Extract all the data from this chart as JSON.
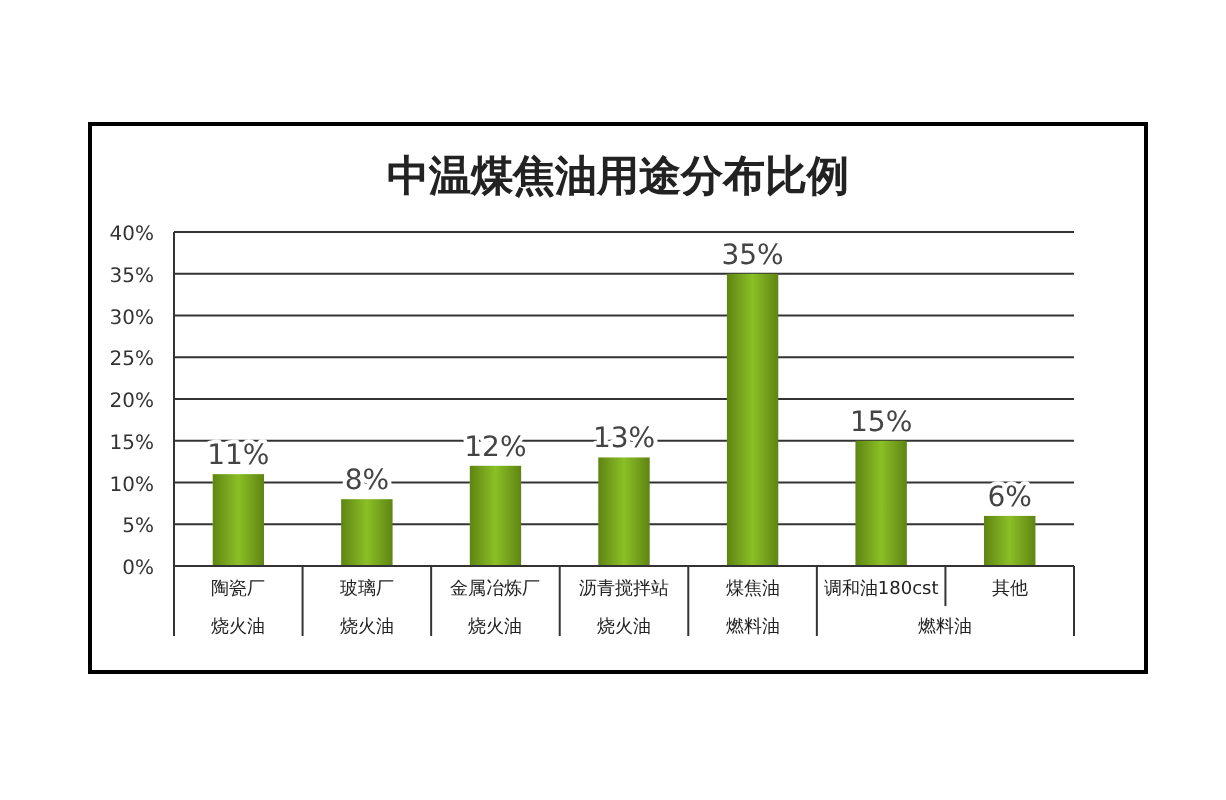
{
  "chart_data": {
    "type": "bar",
    "title": "中温煤焦油用途分布比例",
    "categories": [
      "陶瓷厂",
      "玻璃厂",
      "金属冶炼厂",
      "沥青搅拌站",
      "煤焦油",
      "调和油180cst",
      "其他"
    ],
    "values": [
      11,
      8,
      12,
      13,
      35,
      15,
      6
    ],
    "value_labels": [
      "11%",
      "8%",
      "12%",
      "13%",
      "35%",
      "15%",
      "6%"
    ],
    "color": "#8cbf26",
    "ylim": [
      0,
      40
    ],
    "yticks": [
      {
        "value": 0,
        "label": "0%"
      },
      {
        "value": 5,
        "label": "5%"
      },
      {
        "value": 10,
        "label": "10%"
      },
      {
        "value": 15,
        "label": "15%"
      },
      {
        "value": 20,
        "label": "20%"
      },
      {
        "value": 25,
        "label": "25%"
      },
      {
        "value": 30,
        "label": "30%"
      },
      {
        "value": 35,
        "label": "35%"
      },
      {
        "value": 40,
        "label": "40%"
      }
    ],
    "grid": "y",
    "annotations": [
      "烧火油",
      "烧火油",
      "烧火油",
      "烧火油",
      "燃料油",
      "燃料油"
    ]
  }
}
